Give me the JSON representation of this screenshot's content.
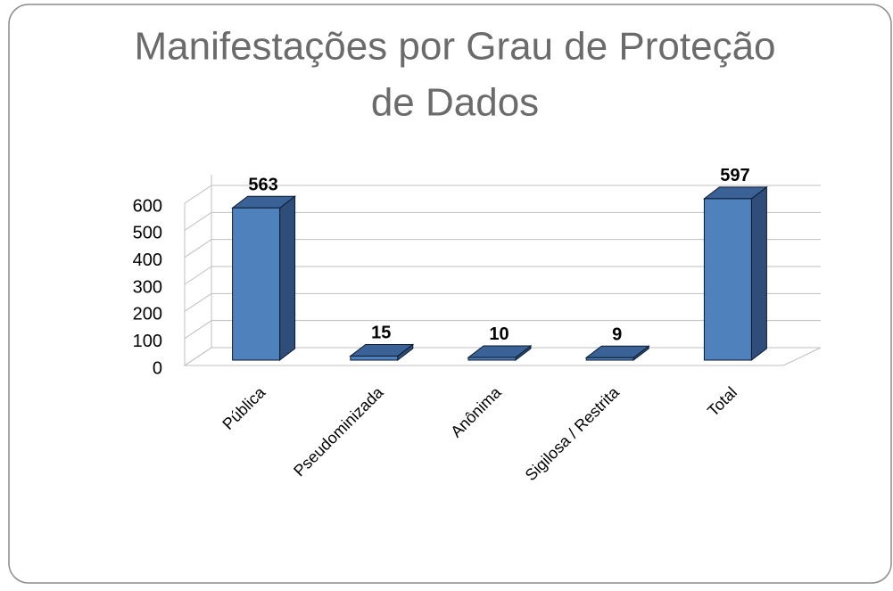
{
  "chart_data": {
    "type": "bar3d",
    "title": [
      "Manifestações por Grau de Proteção",
      "de Dados"
    ],
    "categories": [
      "Pública",
      "Pseudominizada",
      "Anônima",
      "Sigilosa / Restrita",
      "Total"
    ],
    "values": [
      563,
      15,
      10,
      9,
      597
    ],
    "color": "#4f81bd",
    "ylim": [
      0,
      600
    ],
    "yticks": [
      0,
      100,
      200,
      300,
      400,
      500,
      600
    ],
    "grid": true
  }
}
